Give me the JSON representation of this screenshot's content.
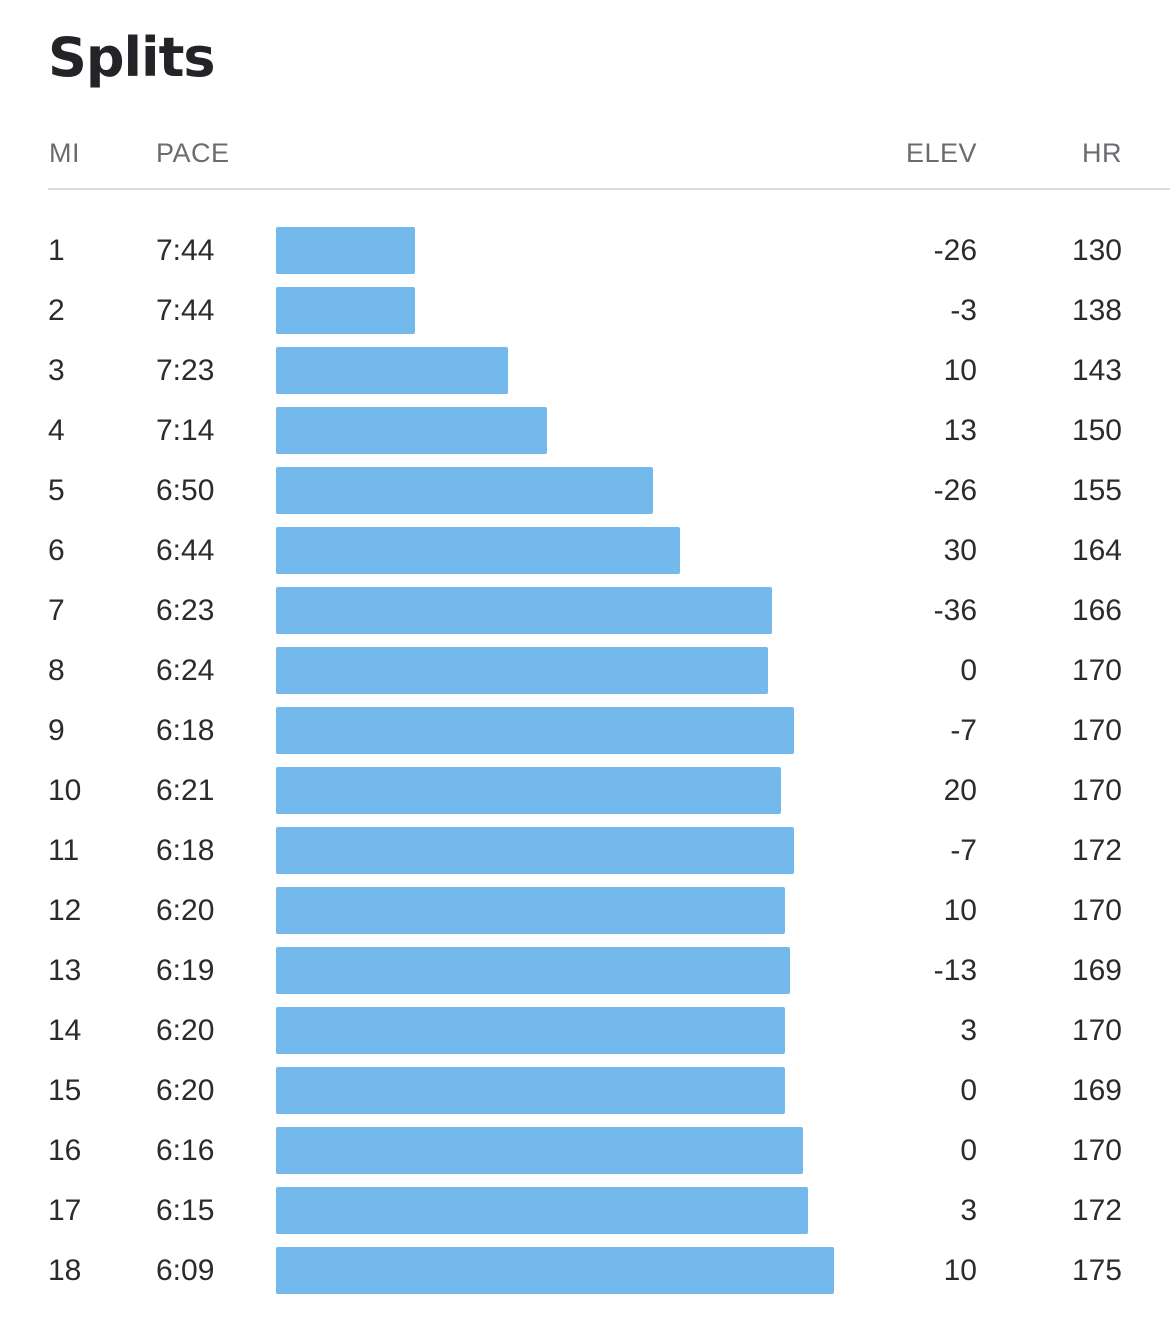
{
  "title": "Splits",
  "columns": {
    "mile": "MI",
    "pace": "PACE",
    "elevation": "ELEV",
    "heart_rate": "HR"
  },
  "bar_color": "#74b9eb",
  "splits": [
    {
      "mile": "1",
      "pace": "7:44",
      "elev": "-26",
      "hr": "130"
    },
    {
      "mile": "2",
      "pace": "7:44",
      "elev": "-3",
      "hr": "138"
    },
    {
      "mile": "3",
      "pace": "7:23",
      "elev": "10",
      "hr": "143"
    },
    {
      "mile": "4",
      "pace": "7:14",
      "elev": "13",
      "hr": "150"
    },
    {
      "mile": "5",
      "pace": "6:50",
      "elev": "-26",
      "hr": "155"
    },
    {
      "mile": "6",
      "pace": "6:44",
      "elev": "30",
      "hr": "164"
    },
    {
      "mile": "7",
      "pace": "6:23",
      "elev": "-36",
      "hr": "166"
    },
    {
      "mile": "8",
      "pace": "6:24",
      "elev": "0",
      "hr": "170"
    },
    {
      "mile": "9",
      "pace": "6:18",
      "elev": "-7",
      "hr": "170"
    },
    {
      "mile": "10",
      "pace": "6:21",
      "elev": "20",
      "hr": "170"
    },
    {
      "mile": "11",
      "pace": "6:18",
      "elev": "-7",
      "hr": "172"
    },
    {
      "mile": "12",
      "pace": "6:20",
      "elev": "10",
      "hr": "170"
    },
    {
      "mile": "13",
      "pace": "6:19",
      "elev": "-13",
      "hr": "169"
    },
    {
      "mile": "14",
      "pace": "6:20",
      "elev": "3",
      "hr": "170"
    },
    {
      "mile": "15",
      "pace": "6:20",
      "elev": "0",
      "hr": "169"
    },
    {
      "mile": "16",
      "pace": "6:16",
      "elev": "0",
      "hr": "170"
    },
    {
      "mile": "17",
      "pace": "6:15",
      "elev": "3",
      "hr": "172"
    },
    {
      "mile": "18",
      "pace": "6:09",
      "elev": "10",
      "hr": "175"
    }
  ]
}
